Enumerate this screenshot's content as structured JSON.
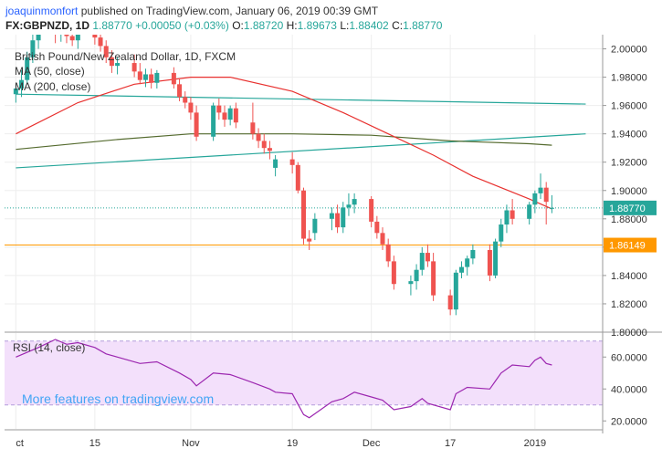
{
  "header": {
    "author": "joaquinmonfort",
    "published_text": "published on TradingView.com, January 06, 2019 00:39 GMT",
    "symbol": "FX:GBPNZD, 1D",
    "last": "1.88770",
    "change": "+0.00050 (+0.03%)",
    "o_label": "O:",
    "o_value": "1.88720",
    "h_label": "H:",
    "h_value": "1.89673",
    "l_label": "L:",
    "l_value": "1.88402",
    "c_label": "C:",
    "c_value": "1.88770"
  },
  "legend": {
    "title": "British Pound/New Zealand Dollar, 1D, FXCM",
    "ma50": "MA (50, close)",
    "ma200": "MA (200, close)",
    "rsi": "RSI (14, close)"
  },
  "watermark": "More features on tradingview.com",
  "colors": {
    "up": "#26a69a",
    "down": "#ef5350",
    "ma50": "#e8312f",
    "ma200": "#556b2f",
    "trendline": "#26a69a",
    "support": "#ff9800",
    "rsi_line": "#9c27b0",
    "rsi_band": "#f3e0fb",
    "price_label": "#26a69a",
    "support_label": "#ff9800"
  },
  "chart_data": [
    {
      "type": "candlestick",
      "title": "British Pound/New Zealand Dollar, 1D, FXCM",
      "x_ticks": [
        {
          "date": "2018-10-01",
          "label": "ct"
        },
        {
          "date": "2018-10-15",
          "label": "15"
        },
        {
          "date": "2018-11-01",
          "label": "Nov"
        },
        {
          "date": "2018-11-19",
          "label": "19"
        },
        {
          "date": "2018-12-03",
          "label": "Dec"
        },
        {
          "date": "2018-12-17",
          "label": "17"
        },
        {
          "date": "2019-01-01",
          "label": "2019"
        }
      ],
      "ylim": [
        1.8,
        2.01
      ],
      "y_ticks": [
        "2.00000",
        "1.98000",
        "1.96000",
        "1.94000",
        "1.92000",
        "1.90000",
        "1.88000",
        "1.86000",
        "1.84000",
        "1.82000",
        "1.80000"
      ],
      "y_tick_values": [
        2.0,
        1.98,
        1.96,
        1.94,
        1.92,
        1.9,
        1.88,
        1.86,
        1.84,
        1.82,
        1.8
      ],
      "last_price": 1.8877,
      "last_price_label": "1.88770",
      "support_level": 1.86149,
      "support_label": "1.86149",
      "candles": [
        {
          "date": "2018-10-01",
          "o": 1.968,
          "h": 1.975,
          "l": 1.962,
          "c": 1.972
        },
        {
          "date": "2018-10-02",
          "o": 1.972,
          "h": 1.985,
          "l": 1.966,
          "c": 1.978
        },
        {
          "date": "2018-10-03",
          "o": 1.978,
          "h": 1.998,
          "l": 1.975,
          "c": 1.994
        },
        {
          "date": "2018-10-04",
          "o": 1.994,
          "h": 2.01,
          "l": 1.99,
          "c": 2.006
        },
        {
          "date": "2018-10-05",
          "o": 2.006,
          "h": 2.015,
          "l": 2.0,
          "c": 2.012
        },
        {
          "date": "2018-10-08",
          "o": 2.012,
          "h": 2.018,
          "l": 2.004,
          "c": 2.01
        },
        {
          "date": "2018-10-09",
          "o": 2.01,
          "h": 2.016,
          "l": 2.005,
          "c": 2.013
        },
        {
          "date": "2018-10-10",
          "o": 2.013,
          "h": 2.016,
          "l": 2.004,
          "c": 2.009
        },
        {
          "date": "2018-10-11",
          "o": 2.009,
          "h": 2.013,
          "l": 2.002,
          "c": 2.006
        },
        {
          "date": "2018-10-12",
          "o": 2.006,
          "h": 2.012,
          "l": 2.0,
          "c": 2.01
        },
        {
          "date": "2018-10-15",
          "o": 2.01,
          "h": 2.015,
          "l": 2.003,
          "c": 2.008
        },
        {
          "date": "2018-10-16",
          "o": 2.008,
          "h": 2.011,
          "l": 1.998,
          "c": 2.002
        },
        {
          "date": "2018-10-17",
          "o": 2.002,
          "h": 2.006,
          "l": 1.99,
          "c": 1.994
        },
        {
          "date": "2018-10-18",
          "o": 1.994,
          "h": 1.999,
          "l": 1.983,
          "c": 1.988
        },
        {
          "date": "2018-10-19",
          "o": 1.988,
          "h": 1.994,
          "l": 1.982,
          "c": 1.99
        },
        {
          "date": "2018-10-22",
          "o": 1.99,
          "h": 1.996,
          "l": 1.98,
          "c": 1.984
        },
        {
          "date": "2018-10-23",
          "o": 1.984,
          "h": 1.99,
          "l": 1.975,
          "c": 1.978
        },
        {
          "date": "2018-10-24",
          "o": 1.978,
          "h": 1.986,
          "l": 1.973,
          "c": 1.982
        },
        {
          "date": "2018-10-25",
          "o": 1.982,
          "h": 1.986,
          "l": 1.972,
          "c": 1.976
        },
        {
          "date": "2018-10-26",
          "o": 1.976,
          "h": 1.985,
          "l": 1.972,
          "c": 1.983
        },
        {
          "date": "2018-10-29",
          "o": 1.983,
          "h": 1.987,
          "l": 1.972,
          "c": 1.975
        },
        {
          "date": "2018-10-30",
          "o": 1.975,
          "h": 1.979,
          "l": 1.963,
          "c": 1.966
        },
        {
          "date": "2018-10-31",
          "o": 1.966,
          "h": 1.97,
          "l": 1.958,
          "c": 1.962
        },
        {
          "date": "2018-11-01",
          "o": 1.962,
          "h": 1.966,
          "l": 1.95,
          "c": 1.955
        },
        {
          "date": "2018-11-02",
          "o": 1.955,
          "h": 1.96,
          "l": 1.935,
          "c": 1.938
        },
        {
          "date": "2018-11-05",
          "o": 1.938,
          "h": 1.962,
          "l": 1.935,
          "c": 1.96
        },
        {
          "date": "2018-11-06",
          "o": 1.96,
          "h": 1.965,
          "l": 1.95,
          "c": 1.955
        },
        {
          "date": "2018-11-07",
          "o": 1.955,
          "h": 1.96,
          "l": 1.945,
          "c": 1.95
        },
        {
          "date": "2018-11-08",
          "o": 1.95,
          "h": 1.96,
          "l": 1.946,
          "c": 1.958
        },
        {
          "date": "2018-11-09",
          "o": 1.958,
          "h": 1.962,
          "l": 1.944,
          "c": 1.948
        },
        {
          "date": "2018-11-12",
          "o": 1.948,
          "h": 1.962,
          "l": 1.936,
          "c": 1.94
        },
        {
          "date": "2018-11-13",
          "o": 1.94,
          "h": 1.944,
          "l": 1.93,
          "c": 1.935
        },
        {
          "date": "2018-11-14",
          "o": 1.935,
          "h": 1.94,
          "l": 1.926,
          "c": 1.93
        },
        {
          "date": "2018-11-15",
          "o": 1.93,
          "h": 1.935,
          "l": 1.922,
          "c": 1.928
        },
        {
          "date": "2018-11-16",
          "o": 1.916,
          "h": 1.925,
          "l": 1.91,
          "c": 1.922
        },
        {
          "date": "2018-11-19",
          "o": 1.922,
          "h": 1.927,
          "l": 1.912,
          "c": 1.918
        },
        {
          "date": "2018-11-20",
          "o": 1.918,
          "h": 1.92,
          "l": 1.898,
          "c": 1.9
        },
        {
          "date": "2018-11-21",
          "o": 1.9,
          "h": 1.902,
          "l": 1.862,
          "c": 1.866
        },
        {
          "date": "2018-11-22",
          "o": 1.866,
          "h": 1.872,
          "l": 1.858,
          "c": 1.864
        },
        {
          "date": "2018-11-23",
          "o": 1.87,
          "h": 1.884,
          "l": 1.865,
          "c": 1.88
        },
        {
          "date": "2018-11-26",
          "o": 1.88,
          "h": 1.888,
          "l": 1.872,
          "c": 1.884
        },
        {
          "date": "2018-11-27",
          "o": 1.884,
          "h": 1.89,
          "l": 1.87,
          "c": 1.874
        },
        {
          "date": "2018-11-28",
          "o": 1.874,
          "h": 1.892,
          "l": 1.87,
          "c": 1.888
        },
        {
          "date": "2018-11-29",
          "o": 1.888,
          "h": 1.898,
          "l": 1.882,
          "c": 1.89
        },
        {
          "date": "2018-11-30",
          "o": 1.89,
          "h": 1.898,
          "l": 1.884,
          "c": 1.894
        },
        {
          "date": "2018-12-03",
          "o": 1.894,
          "h": 1.896,
          "l": 1.874,
          "c": 1.878
        },
        {
          "date": "2018-12-04",
          "o": 1.878,
          "h": 1.882,
          "l": 1.866,
          "c": 1.87
        },
        {
          "date": "2018-12-05",
          "o": 1.87,
          "h": 1.874,
          "l": 1.858,
          "c": 1.862
        },
        {
          "date": "2018-12-06",
          "o": 1.862,
          "h": 1.866,
          "l": 1.846,
          "c": 1.85
        },
        {
          "date": "2018-12-07",
          "o": 1.85,
          "h": 1.854,
          "l": 1.83,
          "c": 1.834
        },
        {
          "date": "2018-12-10",
          "o": 1.834,
          "h": 1.84,
          "l": 1.826,
          "c": 1.836
        },
        {
          "date": "2018-12-11",
          "o": 1.836,
          "h": 1.848,
          "l": 1.83,
          "c": 1.844
        },
        {
          "date": "2018-12-12",
          "o": 1.844,
          "h": 1.86,
          "l": 1.84,
          "c": 1.856
        },
        {
          "date": "2018-12-13",
          "o": 1.856,
          "h": 1.862,
          "l": 1.846,
          "c": 1.85
        },
        {
          "date": "2018-12-14",
          "o": 1.85,
          "h": 1.856,
          "l": 1.822,
          "c": 1.826
        },
        {
          "date": "2018-12-17",
          "o": 1.826,
          "h": 1.83,
          "l": 1.812,
          "c": 1.816
        },
        {
          "date": "2018-12-18",
          "o": 1.816,
          "h": 1.844,
          "l": 1.812,
          "c": 1.842
        },
        {
          "date": "2018-12-19",
          "o": 1.842,
          "h": 1.85,
          "l": 1.838,
          "c": 1.846
        },
        {
          "date": "2018-12-20",
          "o": 1.846,
          "h": 1.854,
          "l": 1.84,
          "c": 1.852
        },
        {
          "date": "2018-12-21",
          "o": 1.852,
          "h": 1.862,
          "l": 1.848,
          "c": 1.858
        },
        {
          "date": "2018-12-24",
          "o": 1.858,
          "h": 1.862,
          "l": 1.836,
          "c": 1.84
        },
        {
          "date": "2018-12-25",
          "o": 1.84,
          "h": 1.866,
          "l": 1.838,
          "c": 1.864
        },
        {
          "date": "2018-12-26",
          "o": 1.864,
          "h": 1.88,
          "l": 1.86,
          "c": 1.876
        },
        {
          "date": "2018-12-27",
          "o": 1.876,
          "h": 1.89,
          "l": 1.87,
          "c": 1.886
        },
        {
          "date": "2018-12-28",
          "o": 1.886,
          "h": 1.894,
          "l": 1.876,
          "c": 1.88
        },
        {
          "date": "2018-12-31",
          "o": 1.88,
          "h": 1.892,
          "l": 1.876,
          "c": 1.89
        },
        {
          "date": "2019-01-01",
          "o": 1.89,
          "h": 1.9,
          "l": 1.884,
          "c": 1.898
        },
        {
          "date": "2019-01-02",
          "o": 1.898,
          "h": 1.912,
          "l": 1.894,
          "c": 1.902
        },
        {
          "date": "2019-01-03",
          "o": 1.902,
          "h": 1.906,
          "l": 1.876,
          "c": 1.892
        },
        {
          "date": "2019-01-04",
          "o": 1.8872,
          "h": 1.8967,
          "l": 1.884,
          "c": 1.8877
        }
      ],
      "ma50": [
        {
          "date": "2018-10-01",
          "v": 1.94
        },
        {
          "date": "2018-10-12",
          "v": 1.962
        },
        {
          "date": "2018-10-22",
          "v": 1.975
        },
        {
          "date": "2018-11-01",
          "v": 1.98
        },
        {
          "date": "2018-11-08",
          "v": 1.98
        },
        {
          "date": "2018-11-19",
          "v": 1.97
        },
        {
          "date": "2018-11-28",
          "v": 1.955
        },
        {
          "date": "2018-12-06",
          "v": 1.94
        },
        {
          "date": "2018-12-14",
          "v": 1.925
        },
        {
          "date": "2018-12-21",
          "v": 1.91
        },
        {
          "date": "2018-12-31",
          "v": 1.894
        },
        {
          "date": "2019-01-04",
          "v": 1.887
        }
      ],
      "ma200": [
        {
          "date": "2018-10-01",
          "v": 1.929
        },
        {
          "date": "2018-10-19",
          "v": 1.936
        },
        {
          "date": "2018-11-01",
          "v": 1.94
        },
        {
          "date": "2018-11-19",
          "v": 1.94
        },
        {
          "date": "2018-12-03",
          "v": 1.939
        },
        {
          "date": "2018-12-17",
          "v": 1.935
        },
        {
          "date": "2018-12-31",
          "v": 1.933
        },
        {
          "date": "2019-01-04",
          "v": 1.932
        }
      ],
      "trendlines": [
        {
          "x1": "2018-10-01",
          "y1": 1.968,
          "x2": "2019-01-10",
          "y2": 1.961
        },
        {
          "x1": "2018-10-01",
          "y1": 1.916,
          "x2": "2019-01-10",
          "y2": 1.94
        }
      ]
    },
    {
      "type": "line",
      "title": "RSI (14, close)",
      "ylim": [
        15,
        75
      ],
      "y_ticks": [
        "60.0000",
        "40.0000",
        "20.0000"
      ],
      "y_tick_values": [
        60,
        40,
        20
      ],
      "bands": [
        30,
        70
      ],
      "series": [
        {
          "name": "RSI (14, close)",
          "points": [
            {
              "date": "2018-10-01",
              "v": 60
            },
            {
              "date": "2018-10-05",
              "v": 66
            },
            {
              "date": "2018-10-08",
              "v": 71
            },
            {
              "date": "2018-10-10",
              "v": 68
            },
            {
              "date": "2018-10-12",
              "v": 69
            },
            {
              "date": "2018-10-15",
              "v": 66
            },
            {
              "date": "2018-10-17",
              "v": 62
            },
            {
              "date": "2018-10-19",
              "v": 60
            },
            {
              "date": "2018-10-23",
              "v": 56
            },
            {
              "date": "2018-10-26",
              "v": 57
            },
            {
              "date": "2018-10-30",
              "v": 50
            },
            {
              "date": "2018-11-01",
              "v": 46
            },
            {
              "date": "2018-11-02",
              "v": 42
            },
            {
              "date": "2018-11-05",
              "v": 50
            },
            {
              "date": "2018-11-08",
              "v": 49
            },
            {
              "date": "2018-11-12",
              "v": 44
            },
            {
              "date": "2018-11-15",
              "v": 40
            },
            {
              "date": "2018-11-16",
              "v": 38
            },
            {
              "date": "2018-11-19",
              "v": 37
            },
            {
              "date": "2018-11-21",
              "v": 24
            },
            {
              "date": "2018-11-22",
              "v": 22
            },
            {
              "date": "2018-11-26",
              "v": 32
            },
            {
              "date": "2018-11-28",
              "v": 34
            },
            {
              "date": "2018-11-30",
              "v": 38
            },
            {
              "date": "2018-12-03",
              "v": 35
            },
            {
              "date": "2018-12-05",
              "v": 33
            },
            {
              "date": "2018-12-07",
              "v": 27
            },
            {
              "date": "2018-12-10",
              "v": 29
            },
            {
              "date": "2018-12-12",
              "v": 34
            },
            {
              "date": "2018-12-13",
              "v": 31
            },
            {
              "date": "2018-12-17",
              "v": 27
            },
            {
              "date": "2018-12-18",
              "v": 37
            },
            {
              "date": "2018-12-20",
              "v": 41
            },
            {
              "date": "2018-12-24",
              "v": 40
            },
            {
              "date": "2018-12-25",
              "v": 45
            },
            {
              "date": "2018-12-26",
              "v": 50
            },
            {
              "date": "2018-12-28",
              "v": 55
            },
            {
              "date": "2018-12-31",
              "v": 54
            },
            {
              "date": "2019-01-01",
              "v": 58
            },
            {
              "date": "2019-01-02",
              "v": 60
            },
            {
              "date": "2019-01-03",
              "v": 56
            },
            {
              "date": "2019-01-04",
              "v": 55
            }
          ]
        }
      ]
    }
  ]
}
